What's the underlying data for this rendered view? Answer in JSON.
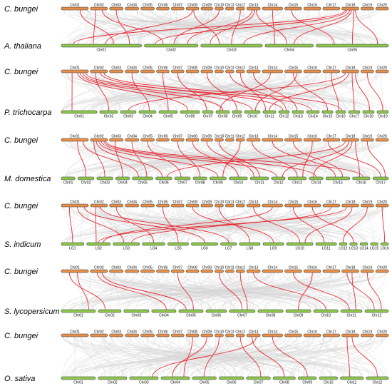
{
  "colors": {
    "reference_bar": "#e8904a",
    "target_bar": "#8cc84b",
    "background_links": "#d6d6d6",
    "syntenic_links": "#e8202a"
  },
  "reference": {
    "name": "C. bungei",
    "chromosomes": [
      {
        "label": "Chr01",
        "size": 3.2
      },
      {
        "label": "Chr02",
        "size": 2.0
      },
      {
        "label": "Chr03",
        "size": 1.6
      },
      {
        "label": "Chr04",
        "size": 1.6
      },
      {
        "label": "Chr05",
        "size": 1.6
      },
      {
        "label": "Chr06",
        "size": 1.5
      },
      {
        "label": "Chr07",
        "size": 1.5
      },
      {
        "label": "Chr08",
        "size": 1.5
      },
      {
        "label": "Chr09",
        "size": 1.4
      },
      {
        "label": "Chr10",
        "size": 1.0
      },
      {
        "label": "Chr11",
        "size": 1.0
      },
      {
        "label": "Chr12",
        "size": 1.0
      },
      {
        "label": "Chr13",
        "size": 1.6
      },
      {
        "label": "Chr14",
        "size": 2.4
      },
      {
        "label": "Chr15",
        "size": 2.0
      },
      {
        "label": "Chr16",
        "size": 2.0
      },
      {
        "label": "Chr17",
        "size": 2.0
      },
      {
        "label": "Chr18",
        "size": 2.0
      },
      {
        "label": "Chr19",
        "size": 1.5
      },
      {
        "label": "Chr20",
        "size": 1.5
      }
    ]
  },
  "comparisons": [
    {
      "name": "A. thaliana",
      "chromosomes": [
        {
          "label": "Chr01",
          "size": 30
        },
        {
          "label": "Chr02",
          "size": 20
        },
        {
          "label": "Chr03",
          "size": 23
        },
        {
          "label": "Chr04",
          "size": 18
        },
        {
          "label": "Chr05",
          "size": 27
        }
      ],
      "links": [
        [
          1,
          0.3,
          0,
          0.4
        ],
        [
          1,
          0.7,
          1,
          0.35
        ],
        [
          2,
          0.5,
          0,
          0.85
        ],
        [
          7,
          0.5,
          0,
          0.55
        ],
        [
          7,
          0.6,
          2,
          0.3
        ],
        [
          9,
          0.5,
          1,
          0.55
        ],
        [
          11,
          0.5,
          2,
          0.5
        ],
        [
          12,
          0.4,
          1,
          0.8
        ],
        [
          12,
          0.6,
          2,
          0.15
        ],
        [
          12,
          0.7,
          3,
          0.45
        ],
        [
          17,
          0.2,
          0,
          0.15
        ],
        [
          17,
          0.3,
          1,
          0.2
        ],
        [
          17,
          0.45,
          2,
          0.7
        ],
        [
          17,
          0.55,
          3,
          0.6
        ],
        [
          17,
          0.7,
          4,
          0.5
        ],
        [
          17,
          0.8,
          4,
          0.85
        ],
        [
          13,
          0.5,
          3,
          0.2
        ],
        [
          14,
          0.4,
          4,
          0.25
        ],
        [
          0,
          0.7,
          0,
          0.65
        ]
      ]
    },
    {
      "name": "P. trichocarpa",
      "chromosomes": [
        {
          "label": "Chr01",
          "size": 50
        },
        {
          "label": "Chr02",
          "size": 25
        },
        {
          "label": "Chr03",
          "size": 22
        },
        {
          "label": "Chr04",
          "size": 24
        },
        {
          "label": "Chr05",
          "size": 26
        },
        {
          "label": "Chr06",
          "size": 27
        },
        {
          "label": "Chr07",
          "size": 15
        },
        {
          "label": "Chr08",
          "size": 19
        },
        {
          "label": "Chr09",
          "size": 13
        },
        {
          "label": "Chr10",
          "size": 22
        },
        {
          "label": "Chr11",
          "size": 18
        },
        {
          "label": "Chr12",
          "size": 15
        },
        {
          "label": "Chr13",
          "size": 16
        },
        {
          "label": "Chr14",
          "size": 18
        },
        {
          "label": "Chr15",
          "size": 15
        },
        {
          "label": "Chr16",
          "size": 14
        },
        {
          "label": "Chr17",
          "size": 16
        },
        {
          "label": "Chr18",
          "size": 16
        },
        {
          "label": "Chr19",
          "size": 16
        }
      ],
      "links": [
        [
          0,
          0.4,
          0,
          0.3
        ],
        [
          0,
          0.6,
          5,
          0.4
        ],
        [
          0,
          0.7,
          7,
          0.5
        ],
        [
          0,
          0.8,
          9,
          0.5
        ],
        [
          0,
          0.9,
          13,
          0.4
        ],
        [
          1,
          0.3,
          1,
          0.5
        ],
        [
          1,
          0.6,
          11,
          0.4
        ],
        [
          1,
          0.8,
          15,
          0.6
        ],
        [
          3,
          0.5,
          3,
          0.6
        ],
        [
          5,
          0.5,
          4,
          0.5
        ],
        [
          6,
          0.5,
          6,
          0.4
        ],
        [
          8,
          0.5,
          8,
          0.5
        ],
        [
          12,
          0.5,
          12,
          0.4
        ],
        [
          13,
          0.4,
          7,
          0.3
        ],
        [
          14,
          0.5,
          14,
          0.5
        ],
        [
          14,
          0.7,
          9,
          0.7
        ],
        [
          17,
          0.2,
          2,
          0.5
        ],
        [
          17,
          0.4,
          10,
          0.5
        ],
        [
          17,
          0.6,
          16,
          0.5
        ],
        [
          17,
          0.8,
          17,
          0.6
        ],
        [
          18,
          0.5,
          18,
          0.5
        ],
        [
          16,
          0.5,
          15,
          0.3
        ],
        [
          10,
          0.5,
          11,
          0.7
        ],
        [
          11,
          0.5,
          10,
          0.2
        ]
      ]
    },
    {
      "name": "M. domestica",
      "chromosomes": [
        {
          "label": "Chr01",
          "size": 30
        },
        {
          "label": "Chr02",
          "size": 35
        },
        {
          "label": "Chr03",
          "size": 35
        },
        {
          "label": "Chr04",
          "size": 30
        },
        {
          "label": "Chr05",
          "size": 45
        },
        {
          "label": "Chr06",
          "size": 35
        },
        {
          "label": "Chr07",
          "size": 34
        },
        {
          "label": "Chr08",
          "size": 30
        },
        {
          "label": "Chr09",
          "size": 36
        },
        {
          "label": "Chr10",
          "size": 40
        },
        {
          "label": "Chr11",
          "size": 40
        },
        {
          "label": "Chr12",
          "size": 30
        },
        {
          "label": "Chr13",
          "size": 40
        },
        {
          "label": "Chr14",
          "size": 30
        },
        {
          "label": "Chr15",
          "size": 52
        },
        {
          "label": "Chr16",
          "size": 38
        },
        {
          "label": "Chr17",
          "size": 34
        }
      ],
      "links": [
        [
          1,
          0.2,
          2,
          0.5
        ],
        [
          1,
          0.35,
          5,
          0.4
        ],
        [
          1,
          0.5,
          8,
          0.5
        ],
        [
          1,
          0.65,
          11,
          0.4
        ],
        [
          1,
          0.8,
          13,
          0.5
        ],
        [
          1,
          0.9,
          15,
          0.6
        ],
        [
          0,
          0.6,
          1,
          0.5
        ],
        [
          0,
          0.8,
          4,
          0.3
        ],
        [
          2,
          0.4,
          3,
          0.5
        ],
        [
          4,
          0.5,
          6,
          0.4
        ],
        [
          6,
          0.5,
          7,
          0.5
        ],
        [
          7,
          0.5,
          9,
          0.5
        ],
        [
          9,
          0.5,
          10,
          0.5
        ],
        [
          12,
          0.4,
          12,
          0.5
        ],
        [
          13,
          0.5,
          14,
          0.4
        ],
        [
          14,
          0.5,
          14,
          0.7
        ],
        [
          16,
          0.3,
          16,
          0.5
        ],
        [
          17,
          0.2,
          5,
          0.7
        ],
        [
          17,
          0.4,
          11,
          0.8
        ],
        [
          17,
          0.6,
          13,
          0.3
        ],
        [
          17,
          0.8,
          15,
          0.4
        ],
        [
          18,
          0.5,
          16,
          0.8
        ],
        [
          15,
          0.5,
          12,
          0.8
        ],
        [
          11,
          0.5,
          8,
          0.8
        ],
        [
          3,
          0.5,
          4,
          0.7
        ],
        [
          8,
          0.5,
          10,
          0.2
        ]
      ]
    },
    {
      "name": "S. indicum",
      "chromosomes": [
        {
          "label": "LG1",
          "size": 24
        },
        {
          "label": "LG2",
          "size": 25
        },
        {
          "label": "LG3",
          "size": 28
        },
        {
          "label": "LG4",
          "size": 24
        },
        {
          "label": "LG5",
          "size": 22
        },
        {
          "label": "LG6",
          "size": 28
        },
        {
          "label": "LG7",
          "size": 17
        },
        {
          "label": "LG8",
          "size": 22
        },
        {
          "label": "LG9",
          "size": 22
        },
        {
          "label": "LG10",
          "size": 28
        },
        {
          "label": "LG11",
          "size": 22
        },
        {
          "label": "LG12",
          "size": 8
        },
        {
          "label": "LG13",
          "size": 8
        },
        {
          "label": "LG14",
          "size": 8
        },
        {
          "label": "LG15",
          "size": 8
        },
        {
          "label": "LG16",
          "size": 8
        }
      ],
      "links": [
        [
          0,
          0.3,
          0,
          0.5
        ],
        [
          0,
          0.6,
          2,
          0.4
        ],
        [
          0,
          0.85,
          5,
          0.5
        ],
        [
          1,
          0.3,
          1,
          0.4
        ],
        [
          1,
          0.6,
          6,
          0.5
        ],
        [
          2,
          0.5,
          3,
          0.5
        ],
        [
          5,
          0.5,
          4,
          0.5
        ],
        [
          7,
          0.5,
          8,
          0.5
        ],
        [
          9,
          0.5,
          7,
          0.5
        ],
        [
          12,
          0.5,
          9,
          0.5
        ],
        [
          13,
          0.5,
          1,
          0.7
        ],
        [
          14,
          0.5,
          10,
          0.4
        ],
        [
          16,
          0.5,
          2,
          0.7
        ],
        [
          17,
          0.3,
          1,
          0.5
        ],
        [
          17,
          0.6,
          9,
          0.7
        ],
        [
          18,
          0.5,
          11,
          0.5
        ],
        [
          19,
          0.5,
          15,
          0.5
        ],
        [
          15,
          0.5,
          12,
          0.5
        ]
      ]
    },
    {
      "name": "S. lycopersicum",
      "chromosomes": [
        {
          "label": "Chr01",
          "size": 45
        },
        {
          "label": "Chr02",
          "size": 30
        },
        {
          "label": "Chr03",
          "size": 33
        },
        {
          "label": "Chr04",
          "size": 32
        },
        {
          "label": "Chr05",
          "size": 32
        },
        {
          "label": "Chr06",
          "size": 27
        },
        {
          "label": "Chr07",
          "size": 34
        },
        {
          "label": "Chr08",
          "size": 33
        },
        {
          "label": "Chr09",
          "size": 33
        },
        {
          "label": "Chr10",
          "size": 32
        },
        {
          "label": "Chr11",
          "size": 28
        },
        {
          "label": "Chr12",
          "size": 31
        }
      ],
      "links": [
        [
          0,
          0.3,
          1,
          0.3
        ],
        [
          0,
          0.6,
          0,
          0.8
        ],
        [
          1,
          0.4,
          3,
          0.6
        ],
        [
          1,
          0.7,
          4,
          0.3
        ],
        [
          6,
          0.5,
          4,
          0.6
        ],
        [
          9,
          0.5,
          6,
          0.5
        ],
        [
          11,
          0.5,
          6,
          0.7
        ],
        [
          12,
          0.5,
          9,
          0.5
        ],
        [
          14,
          0.5,
          10,
          0.4
        ],
        [
          15,
          0.5,
          8,
          0.5
        ],
        [
          17,
          0.3,
          11,
          0.4
        ],
        [
          17,
          0.6,
          10,
          0.7
        ],
        [
          18,
          0.5,
          11,
          0.7
        ]
      ]
    },
    {
      "name": "O. sativa",
      "chromosomes": [
        {
          "label": "Chr01",
          "size": 43
        },
        {
          "label": "Chr02",
          "size": 36
        },
        {
          "label": "Chr03",
          "size": 36
        },
        {
          "label": "Chr04",
          "size": 36
        },
        {
          "label": "Chr05",
          "size": 30
        },
        {
          "label": "Chr06",
          "size": 31
        },
        {
          "label": "Chr07",
          "size": 30
        },
        {
          "label": "Chr08",
          "size": 28
        },
        {
          "label": "Chr09",
          "size": 23
        },
        {
          "label": "Chr10",
          "size": 23
        },
        {
          "label": "Chr11",
          "size": 29
        },
        {
          "label": "Chr12",
          "size": 28
        }
      ],
      "links": [
        [
          8,
          0.5,
          3,
          0.4
        ],
        [
          9,
          0.5,
          4,
          0.5
        ],
        [
          11,
          0.5,
          6,
          0.6
        ],
        [
          12,
          0.4,
          7,
          0.5
        ],
        [
          13,
          0.5,
          8,
          0.5
        ],
        [
          17,
          0.3,
          10,
          0.4
        ],
        [
          17,
          0.6,
          11,
          0.5
        ],
        [
          7,
          0.5,
          3,
          0.8
        ],
        [
          12,
          0.7,
          2,
          0.8
        ]
      ]
    }
  ]
}
